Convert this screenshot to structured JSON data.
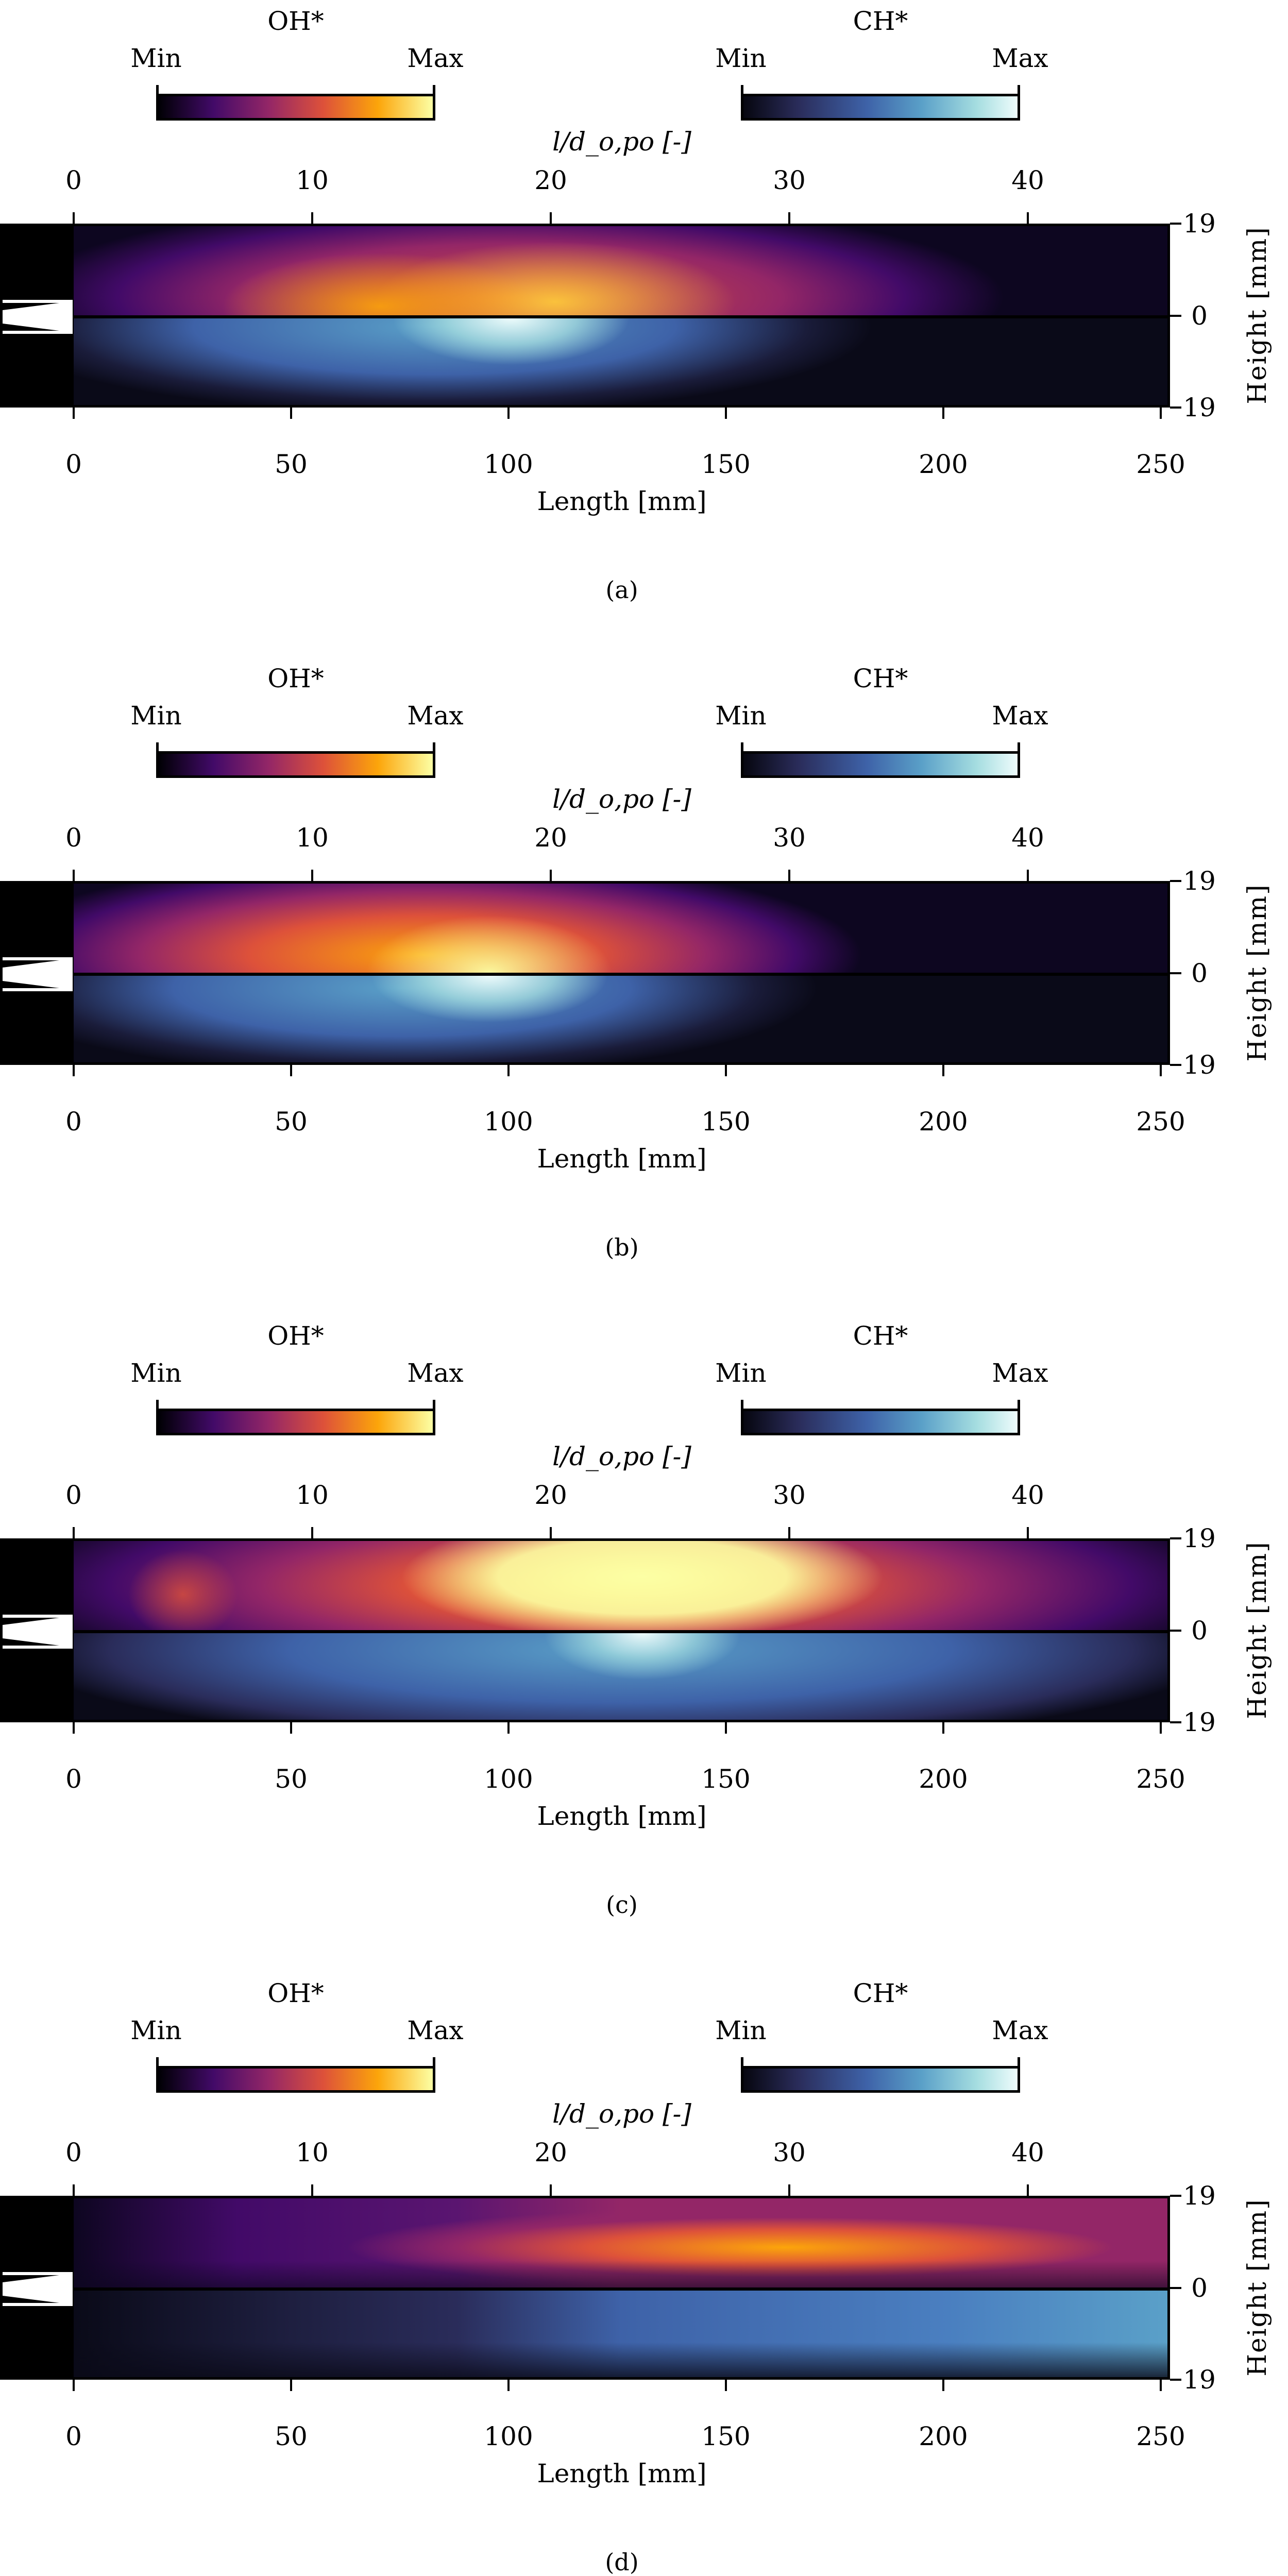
{
  "legend": {
    "oh_title": "OH*",
    "ch_title": "CH*",
    "min_label": "Min",
    "max_label": "Max"
  },
  "chart_data": {
    "type": "heatmap",
    "top_xlabel": "l/d_o,po [-]",
    "xlabel": "Length [mm]",
    "ylabel": "Height [mm]",
    "xlim_mm": [
      0,
      253
    ],
    "top_ticks": [
      0,
      10,
      20,
      30,
      40
    ],
    "bottom_ticks": [
      0,
      50,
      100,
      150,
      200,
      250
    ],
    "right_ticks": [
      "19",
      "0",
      "19"
    ],
    "upper_half": "OH*",
    "lower_half": "CH*",
    "colormaps": {
      "OH*": [
        "#000004",
        "#420a68",
        "#932667",
        "#dd513a",
        "#fca50a",
        "#fcffa4"
      ],
      "CH*": [
        "#06060f",
        "#2a2c5a",
        "#3e62a8",
        "#5aa0c8",
        "#a5dde0",
        "#eefcfc"
      ]
    },
    "panels": [
      {
        "label": "(a)",
        "oh_peak_mm": 100,
        "ch_peak_mm": 95
      },
      {
        "label": "(b)",
        "oh_peak_mm": 95,
        "ch_peak_mm": 95
      },
      {
        "label": "(c)",
        "oh_peak_mm": 130,
        "ch_peak_mm": 130
      },
      {
        "label": "(d)",
        "oh_peak_mm": 150,
        "ch_peak_mm": 200
      }
    ]
  }
}
